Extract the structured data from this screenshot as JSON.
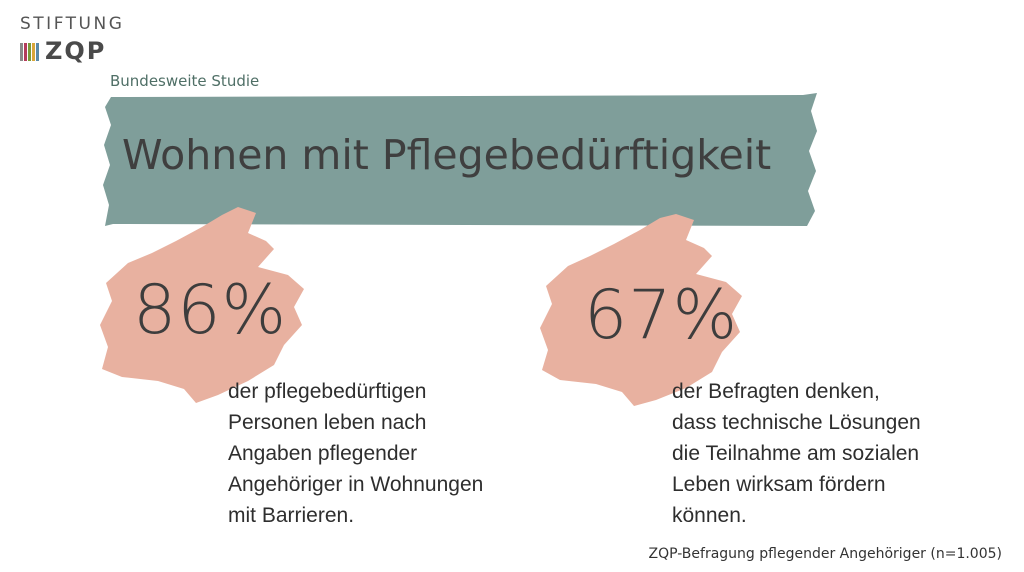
{
  "logo": {
    "line1": "STIFTUNG",
    "line2": "ZQP",
    "bar_colors": [
      "#8a8a8a",
      "#b43c5c",
      "#7a9a3a",
      "#d9a63a",
      "#5b8aa8"
    ]
  },
  "subtitle": "Bundesweite Studie",
  "title": "Wohnen mit Pflegebedürftigkeit",
  "colors": {
    "banner": "#7f9e9a",
    "brush": "#e8b1a0",
    "subtitle": "#4f6f66"
  },
  "stats": [
    {
      "value": "86%",
      "lines": [
        "der pflegebedürftigen",
        "Personen leben nach",
        "Angaben pflegender",
        "Angehöriger in Wohnungen",
        "mit Barrieren."
      ]
    },
    {
      "value": "67%",
      "lines": [
        "der Befragten denken,",
        "dass technische Lösungen",
        "die Teilnahme am sozialen",
        "Leben wirksam fördern",
        "können."
      ]
    }
  ],
  "source": "ZQP-Befragung pflegender Angehöriger (n=1.005)"
}
